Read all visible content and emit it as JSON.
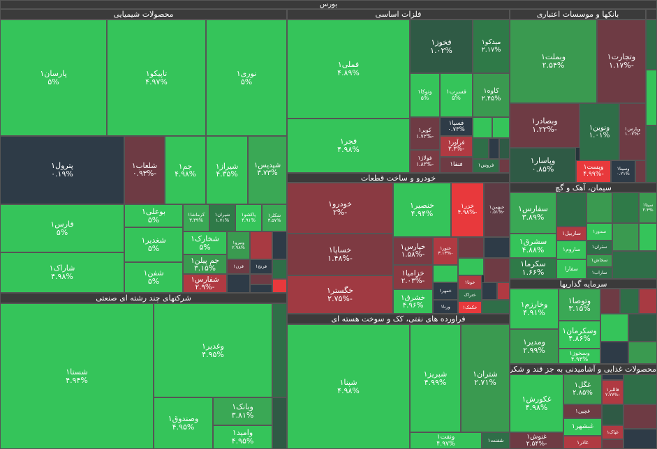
{
  "header": {
    "title": "بورس"
  },
  "sectors": [
    {
      "title": "محصولات شیمیایی",
      "tiles": [
        {
          "name": "پارسان۱",
          "change": "۵%",
          "color": "#35c45a"
        },
        {
          "name": "تاپیکو۱",
          "change": "۴.۹۷%",
          "color": "#35c45a"
        },
        {
          "name": "نوری۱",
          "change": "۵%",
          "color": "#35c45a"
        },
        {
          "name": "پترول۱",
          "change": "۰.۱۹%",
          "color": "#2e3b47"
        },
        {
          "name": "شلعاب۱",
          "change": "-۰.۹۳%",
          "color": "#6e3b44"
        },
        {
          "name": "جم۱",
          "change": "۴.۹۸%",
          "color": "#35c45a"
        },
        {
          "name": "شیراز۱",
          "change": "۴.۳۵%",
          "color": "#35c45a"
        },
        {
          "name": "شپدیس۱",
          "change": "۳.۷۳%",
          "color": "#3aa855"
        },
        {
          "name": "فارس۱",
          "change": "۵%",
          "color": "#35c45a"
        },
        {
          "name": "شاراک۱",
          "change": "۴.۹۸%",
          "color": "#35c45a"
        },
        {
          "name": "بوعلی۱",
          "change": "۵%",
          "color": "#35c45a"
        },
        {
          "name": "شغدیر۱",
          "change": "۵%",
          "color": "#35c45a"
        },
        {
          "name": "شفن۱",
          "change": "۵%",
          "color": "#35c45a"
        },
        {
          "name": "کرماشا۱",
          "change": "۳.۳۹%",
          "color": "#3aa855"
        },
        {
          "name": "شیران۱",
          "change": "۱.۷۱%",
          "color": "#2f7a48"
        },
        {
          "name": "پاکشو۱",
          "change": "۴.۹۱%",
          "color": "#35c45a"
        },
        {
          "name": "شکلر۱",
          "change": "۳.۵۷%",
          "color": "#3aa855"
        },
        {
          "name": "شخارک۱",
          "change": "۵%",
          "color": "#35c45a"
        },
        {
          "name": "جم پیلن۱",
          "change": "۳.۱۵%",
          "color": "#3a9a50"
        },
        {
          "name": "شفارس۱",
          "change": "-۲.۹%",
          "color": "#b03a42"
        },
        {
          "name": "ونیرو۱",
          "change": "۲.۹۸%",
          "color": "#3a9a50"
        },
        {
          "name": "قرن۱",
          "color": "#6e3b44"
        },
        {
          "name": "فرنج۱",
          "color": "#2e3b47"
        }
      ]
    },
    {
      "title": "شرکتهای چند رشته ای صنعتی",
      "tiles": [
        {
          "name": "شستا۱",
          "change": "۴.۹۴%",
          "color": "#35c45a"
        },
        {
          "name": "وغدیر۱",
          "change": "۴.۹۵%",
          "color": "#35c45a"
        },
        {
          "name": "وصندوق۱",
          "change": "۴.۹۵%",
          "color": "#35c45a"
        },
        {
          "name": "وبانک۱",
          "change": "۳.۸۱%",
          "color": "#3aa855"
        },
        {
          "name": "وامید۱",
          "change": "۴.۹۵%",
          "color": "#35c45a"
        }
      ]
    },
    {
      "title": "فلزات اساسی",
      "tiles": [
        {
          "name": "فملی۱",
          "change": "۴.۸۹%",
          "color": "#35c45a"
        },
        {
          "name": "فخوز۱",
          "change": "۱.۰۲%",
          "color": "#2f5a45"
        },
        {
          "name": "میدکو۱",
          "change": "۲.۱۷%",
          "color": "#2f7a48"
        },
        {
          "name": "وتوکا۱",
          "change": "۵%",
          "color": "#35c45a"
        },
        {
          "name": "فسرب۱",
          "change": "۵%",
          "color": "#35c45a"
        },
        {
          "name": "کاوه۱",
          "change": "۲.۴۵%",
          "color": "#3a9a50"
        },
        {
          "name": "فجر۱",
          "change": "۴.۹۸%",
          "color": "#35c45a"
        },
        {
          "name": "کویر۱",
          "change": "-۱.۷۲%",
          "color": "#6e3b44"
        },
        {
          "name": "فولاژ۱",
          "change": "-۱.۸۳%",
          "color": "#7a3b44"
        },
        {
          "name": "فسپا۱",
          "change": "۰.۷۳%",
          "color": "#2e3b47"
        },
        {
          "name": "فرآور۱",
          "change": "-۳.۳%",
          "color": "#b03a42"
        },
        {
          "name": "فنفا۱",
          "color": "#6e3b44"
        },
        {
          "name": "فروس۱",
          "color": "#2f6e48"
        }
      ]
    },
    {
      "title": "خودرو و ساخت قطعات",
      "tiles": [
        {
          "name": "خودرو۱",
          "change": "-۲%",
          "color": "#8a3a42"
        },
        {
          "name": "خساپا۱",
          "change": "-۱.۴۸%",
          "color": "#7e3a42"
        },
        {
          "name": "خگستر۱",
          "change": "-۲.۷۵%",
          "color": "#a03a42"
        },
        {
          "name": "خنصیر۱",
          "change": "۴.۹۴%",
          "color": "#35c45a"
        },
        {
          "name": "خزر۱",
          "change": "-۴.۹۸%",
          "color": "#e8393c"
        },
        {
          "name": "خبهمن۱",
          "change": "-۰.۵۱%",
          "color": "#5e3b44"
        },
        {
          "name": "خپارس۱",
          "change": "-۱.۵۸%",
          "color": "#7a3b44"
        },
        {
          "name": "ختور۱",
          "change": "-۳.۱۳%",
          "color": "#b03a42"
        },
        {
          "name": "خزامیا۱",
          "change": "-۲.۰۳%",
          "color": "#8a3a42"
        },
        {
          "name": "خشرق۱",
          "change": "۴.۹۶%",
          "color": "#35c45a"
        },
        {
          "name": "خمهر۱",
          "color": "#2e3b47"
        },
        {
          "name": "ورنا۱",
          "color": "#2e3b47"
        },
        {
          "name": "خوتا۱",
          "color": "#b03a42"
        },
        {
          "name": "ختراک",
          "color": "#2f6e48"
        },
        {
          "name": "خکمک۱",
          "color": "#e8393c"
        }
      ]
    },
    {
      "title": "فراورده های نفتی، کک و سوخت هسته ای",
      "tiles": [
        {
          "name": "شپنا۱",
          "change": "۴.۹۸%",
          "color": "#35c45a"
        },
        {
          "name": "شبریز۱",
          "change": "۴.۹۹%",
          "color": "#35c45a"
        },
        {
          "name": "شتران۱",
          "change": "۲.۷۱%",
          "color": "#3a9a50"
        },
        {
          "name": "ونفت۱",
          "change": "۴.۹۷%",
          "color": "#35c45a"
        },
        {
          "name": "شفنت۱",
          "color": "#2f6e48"
        }
      ]
    },
    {
      "title": "بانکها و موسسات اعتباری",
      "tiles": [
        {
          "name": "وبملت۱",
          "change": "۲.۵۴%",
          "color": "#3a9a50"
        },
        {
          "name": "وتجارت۱",
          "change": "-۱.۱۷%",
          "color": "#6e3b44"
        },
        {
          "name": "وبصادر۱",
          "change": "-۱.۲۲%",
          "color": "#6e3b44"
        },
        {
          "name": "ونوین۱",
          "change": "۱.۰۱%",
          "color": "#2f6e48"
        },
        {
          "name": "وپارس۱",
          "change": "-۱.۰۷%",
          "color": "#6e3b44"
        },
        {
          "name": "وپاسار۱",
          "change": "۰.۸۵%",
          "color": "#2f5a45"
        },
        {
          "name": "وپست۱",
          "change": "-۴.۹۹%",
          "color": "#e8393c"
        },
        {
          "name": "وسینا۱",
          "change": "۰.۲۱%",
          "color": "#2e3b47"
        }
      ]
    },
    {
      "title": "سیمان، آهک و گچ",
      "tiles": [
        {
          "name": "سفارس۱",
          "change": "۳.۸۹%",
          "color": "#3aa855"
        },
        {
          "name": "سشرق۱",
          "change": "۴.۸۸%",
          "color": "#35c45a"
        },
        {
          "name": "سکرما۱",
          "change": "۱.۶۶%",
          "color": "#2f7a48"
        },
        {
          "name": "ساربیل۱",
          "color": "#b03a42"
        },
        {
          "name": "ساروم۱",
          "color": "#35c45a"
        },
        {
          "name": "سفارا",
          "color": "#35c45a"
        },
        {
          "name": "سدور۱",
          "color": "#35c45a"
        },
        {
          "name": "ستران۱",
          "color": "#2f6e48"
        },
        {
          "name": "سخاش۱",
          "color": "#3a9a50"
        },
        {
          "name": "ساراب۱",
          "color": "#2f6e48"
        },
        {
          "name": "سیتا۱",
          "change": "۲.۴%",
          "color": "#3a9a50"
        }
      ]
    },
    {
      "title": "سرمایه گذاریها",
      "tiles": [
        {
          "name": "وخارزم۱",
          "change": "۴.۹۱%",
          "color": "#35c45a"
        },
        {
          "name": "ومدیر۱",
          "change": "۲.۹۹%",
          "color": "#3a9a50"
        },
        {
          "name": "وتوصا۱",
          "change": "۳.۱۵%",
          "color": "#3aa855"
        },
        {
          "name": "وسکرمان۱",
          "change": "۴.۸۶%",
          "color": "#35c45a"
        },
        {
          "name": "وسخوز۱",
          "change": "۴.۹۴%",
          "color": "#35c45a"
        }
      ]
    },
    {
      "title": "محصولات غذایی و آشامیدنی به جز قند و شکر",
      "tiles": [
        {
          "name": "غکورش۱",
          "change": "۴.۹۸%",
          "color": "#35c45a"
        },
        {
          "name": "غنوش۱",
          "change": "-۲.۵۴%",
          "color": "#6e3b44"
        },
        {
          "name": "غگل۱",
          "change": "۲.۸۵%",
          "color": "#3a9a50"
        },
        {
          "name": "غچین۱",
          "color": "#6e3b44"
        },
        {
          "name": "غبشهر۱",
          "color": "#35c45a"
        },
        {
          "name": "غاذر۱",
          "color": "#b03a42"
        },
        {
          "name": "قاللبر۱",
          "change": "-۲.۷۷%",
          "color": "#b03a42"
        },
        {
          "name": "غپاک۱",
          "color": "#b03a42"
        }
      ]
    }
  ]
}
